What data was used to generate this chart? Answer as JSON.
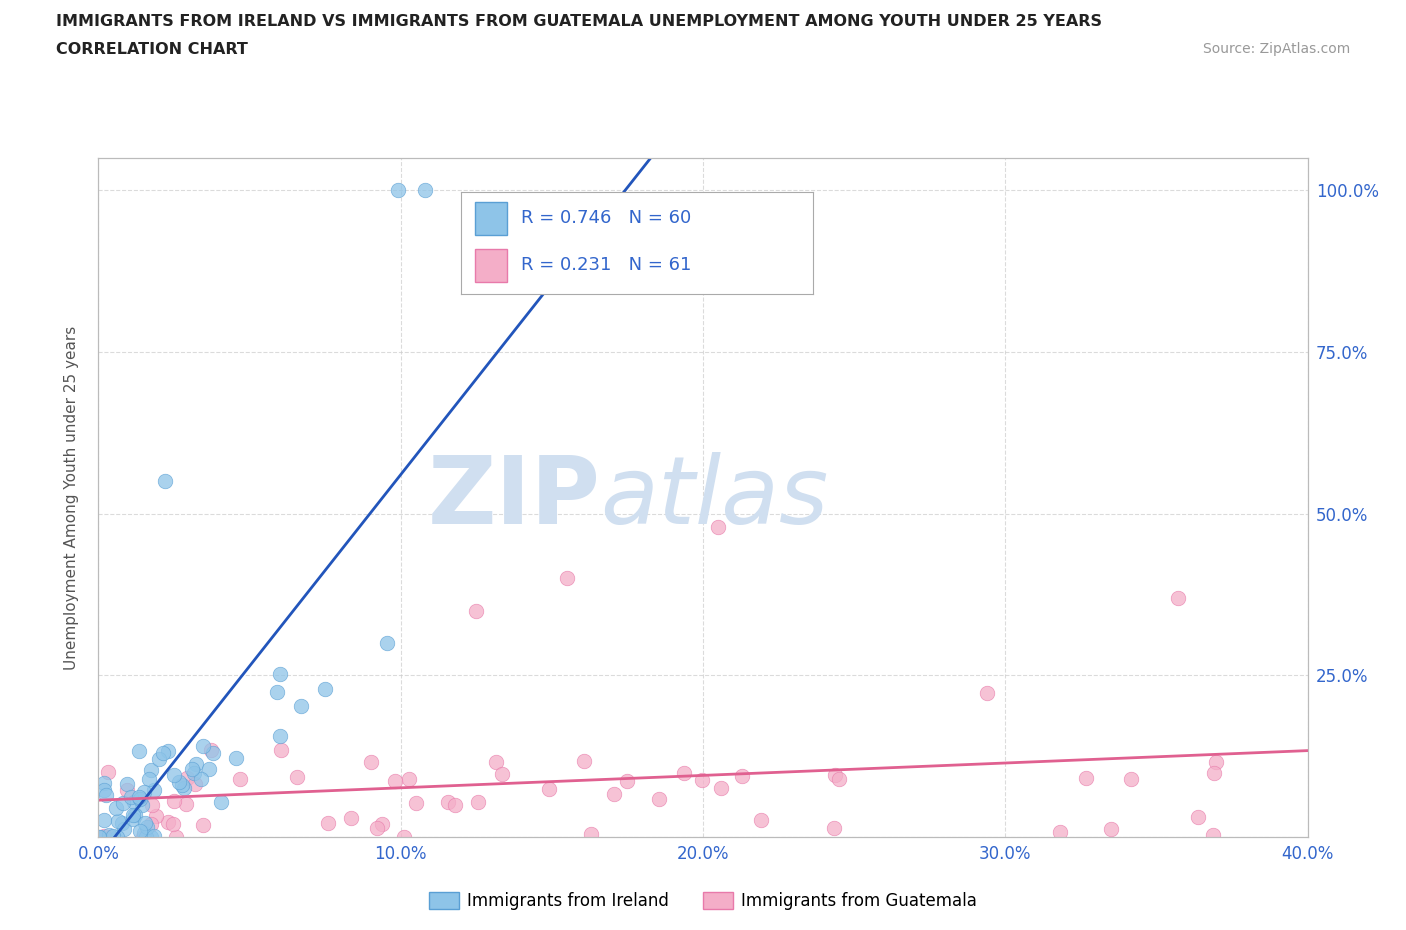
{
  "title_line1": "IMMIGRANTS FROM IRELAND VS IMMIGRANTS FROM GUATEMALA UNEMPLOYMENT AMONG YOUTH UNDER 25 YEARS",
  "title_line2": "CORRELATION CHART",
  "source_text": "Source: ZipAtlas.com",
  "ylabel": "Unemployment Among Youth under 25 years",
  "xlim": [
    0.0,
    0.4
  ],
  "ylim": [
    0.0,
    1.05
  ],
  "ireland_color": "#8ec4e8",
  "ireland_edge": "#5a9fd4",
  "guatemala_color": "#f4aec8",
  "guatemala_edge": "#e87aaa",
  "ireland_R": 0.746,
  "ireland_N": 60,
  "guatemala_R": 0.231,
  "guatemala_N": 61,
  "watermark_zip": "ZIP",
  "watermark_atlas": "atlas",
  "watermark_color": "#d0dff0",
  "legend_color": "#3366cc",
  "grid_color": "#cccccc",
  "tick_color": "#3366cc",
  "ireland_line_color": "#2255bb",
  "guatemala_line_color": "#e06090"
}
